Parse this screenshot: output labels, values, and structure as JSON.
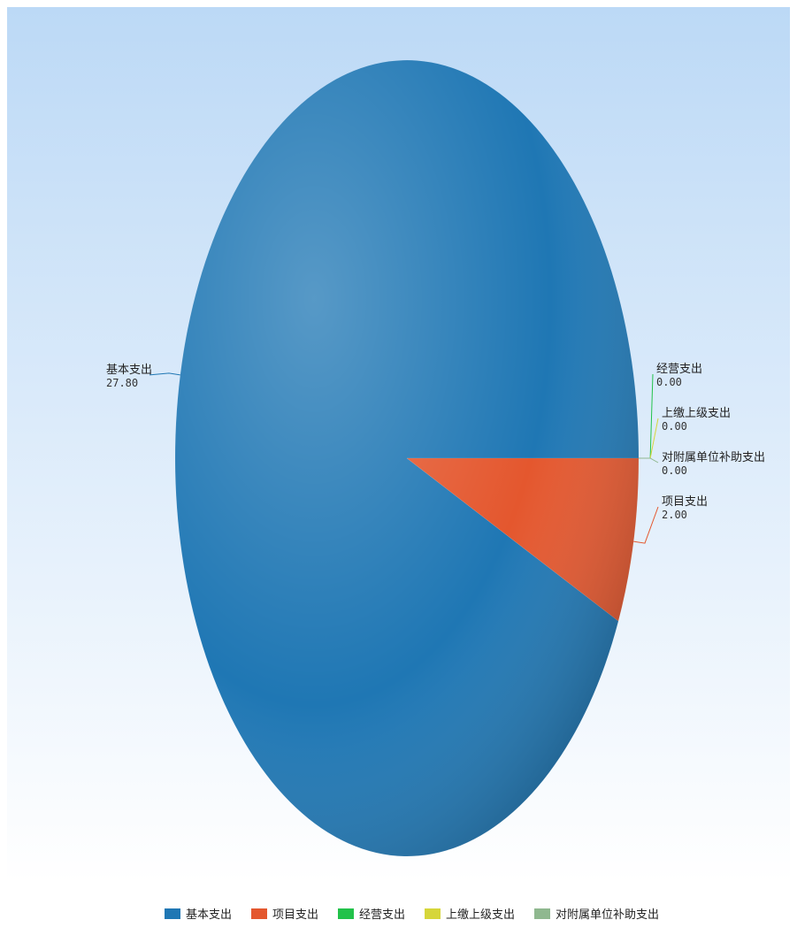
{
  "chart_data": {
    "type": "pie",
    "series": [
      {
        "name": "基本支出",
        "value": 27.8,
        "label_value": "27.80",
        "color": "#1f77b4"
      },
      {
        "name": "项目支出",
        "value": 2.0,
        "label_value": "2.00",
        "color": "#e4572e"
      },
      {
        "name": "经营支出",
        "value": 0.0,
        "label_value": "0.00",
        "color": "#22c24a"
      },
      {
        "name": "上缴上级支出",
        "value": 0.0,
        "label_value": "0.00",
        "color": "#d6d63a"
      },
      {
        "name": "对附属单位补助支出",
        "value": 0.0,
        "label_value": "0.00",
        "color": "#8fb88f"
      }
    ],
    "legend_position": "bottom",
    "background_gradient": [
      "#bcd9f6",
      "#ffffff"
    ]
  }
}
